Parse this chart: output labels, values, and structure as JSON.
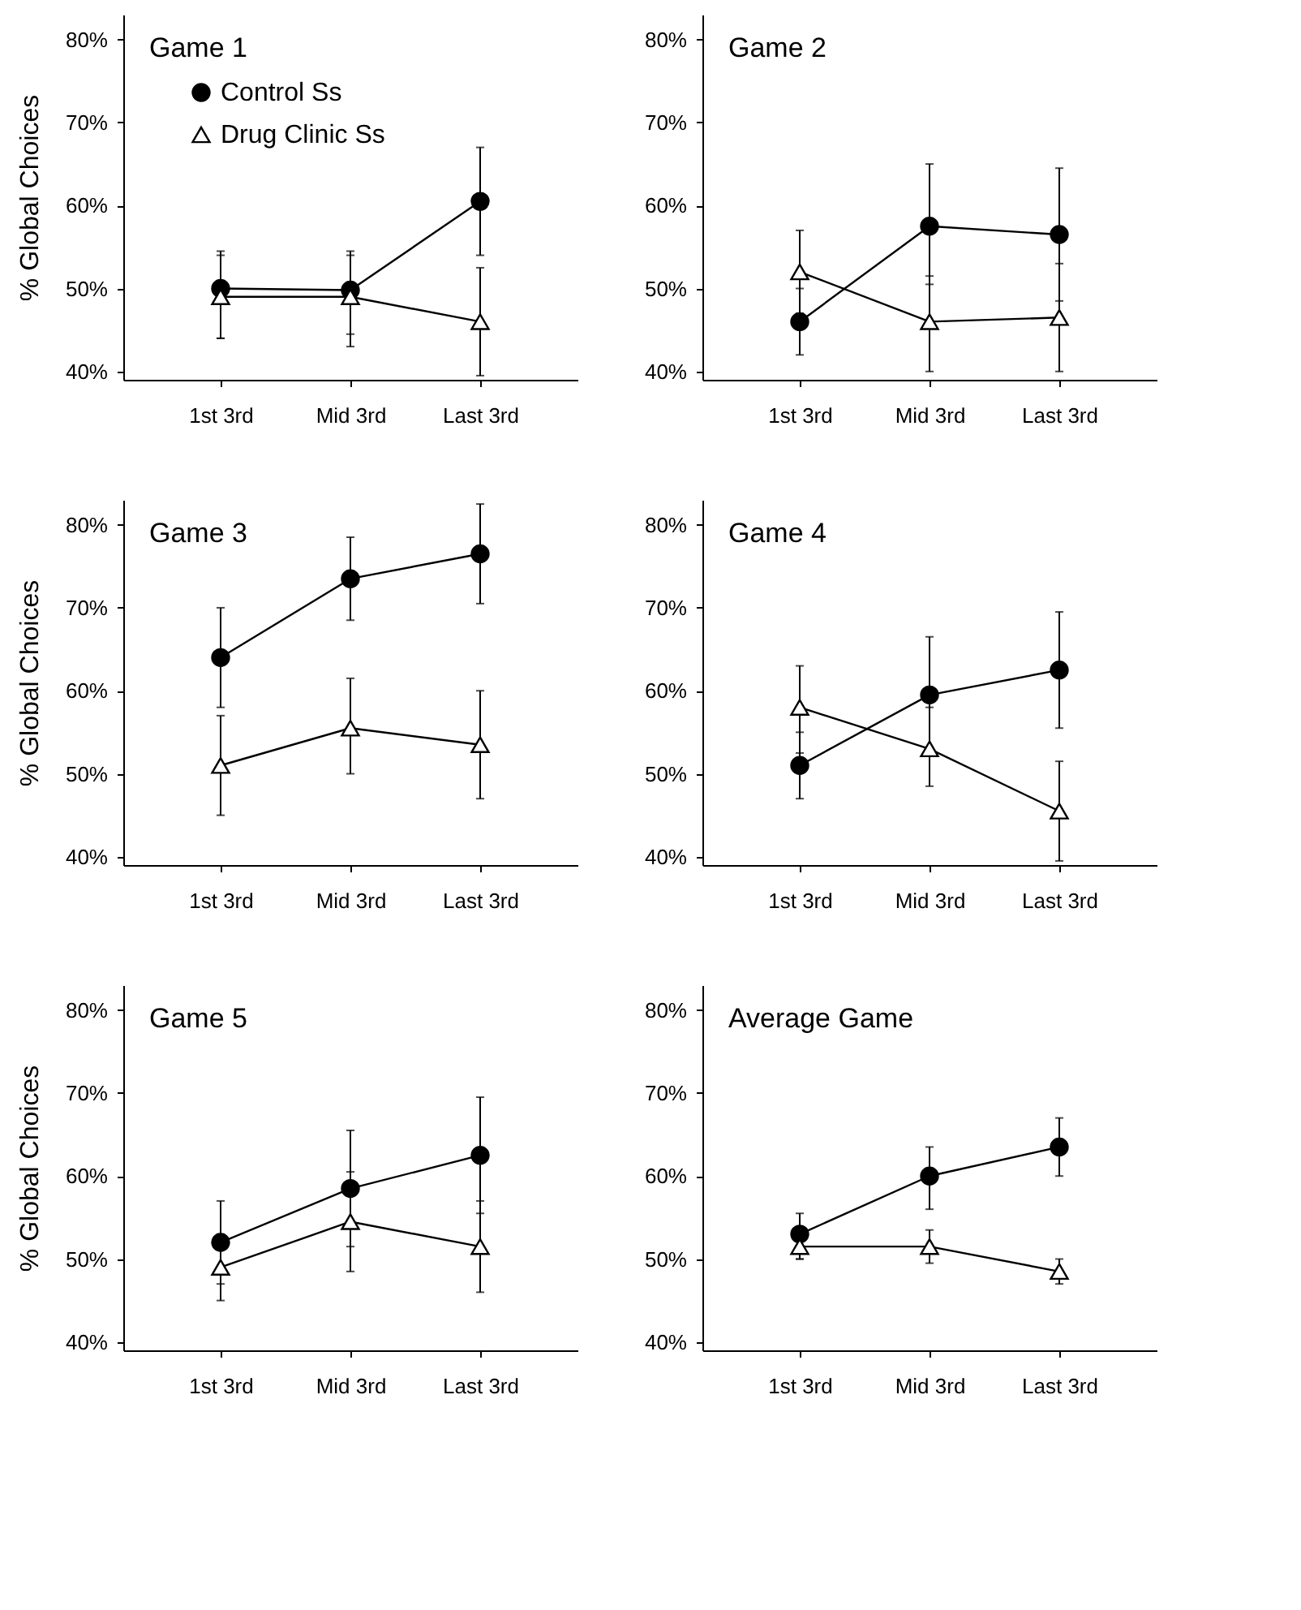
{
  "chart_data": [
    {
      "type": "line",
      "title": "Game 1",
      "ylabel": "% Global Choices",
      "categories": [
        "1st  3rd",
        "Mid 3rd",
        "Last 3rd"
      ],
      "ylim": [
        39,
        83
      ],
      "yticks": [
        {
          "value": 40,
          "label": "40%"
        },
        {
          "value": 50,
          "label": "50%"
        },
        {
          "value": 60,
          "label": "60%"
        },
        {
          "value": 70,
          "label": "70%"
        },
        {
          "value": 80,
          "label": "80%"
        }
      ],
      "legend": "top left",
      "grid": false,
      "series": [
        {
          "name": "Control Ss",
          "color": "#000000",
          "marker": "circle",
          "values": [
            50,
            49.8,
            60.5
          ],
          "errors": [
            [
              44,
              54.5
            ],
            [
              44.5,
              54.5
            ],
            [
              54,
              67
            ]
          ]
        },
        {
          "name": "Drug Clinic Ss",
          "color": "#000000",
          "marker": "triangle",
          "values": [
            49,
            49,
            46
          ],
          "errors": [
            [
              44,
              54
            ],
            [
              43,
              54
            ],
            [
              39.5,
              52.5
            ]
          ]
        }
      ]
    },
    {
      "type": "line",
      "title": "Game 2",
      "categories": [
        "1st  3rd",
        "Mid 3rd",
        "Last 3rd"
      ],
      "ylim": [
        39,
        83
      ],
      "yticks": [
        {
          "value": 40,
          "label": "40%"
        },
        {
          "value": 50,
          "label": "50%"
        },
        {
          "value": 60,
          "label": "60%"
        },
        {
          "value": 70,
          "label": "70%"
        },
        {
          "value": 80,
          "label": "80%"
        }
      ],
      "grid": false,
      "series": [
        {
          "color": "#000000",
          "marker": "circle",
          "values": [
            46,
            57.5,
            56.5
          ],
          "errors": [
            [
              42,
              50
            ],
            [
              50.5,
              65
            ],
            [
              48.5,
              64.5
            ]
          ]
        },
        {
          "color": "#000000",
          "marker": "triangle",
          "values": [
            52,
            46,
            46.5
          ],
          "errors": [
            [
              47,
              57
            ],
            [
              40,
              51.5
            ],
            [
              40,
              53
            ]
          ]
        }
      ]
    },
    {
      "type": "line",
      "title": "Game 3",
      "ylabel": "% Global Choices",
      "categories": [
        "1st  3rd",
        "Mid 3rd",
        "Last 3rd"
      ],
      "ylim": [
        39,
        83
      ],
      "yticks": [
        {
          "value": 40,
          "label": "40%"
        },
        {
          "value": 50,
          "label": "50%"
        },
        {
          "value": 60,
          "label": "60%"
        },
        {
          "value": 70,
          "label": "70%"
        },
        {
          "value": 80,
          "label": "80%"
        }
      ],
      "grid": false,
      "series": [
        {
          "color": "#000000",
          "marker": "circle",
          "values": [
            64,
            73.5,
            76.5
          ],
          "errors": [
            [
              58,
              70
            ],
            [
              68.5,
              78.5
            ],
            [
              70.5,
              82.5
            ]
          ]
        },
        {
          "color": "#000000",
          "marker": "triangle",
          "values": [
            51,
            55.5,
            53.5
          ],
          "errors": [
            [
              45,
              57
            ],
            [
              50,
              61.5
            ],
            [
              47,
              60
            ]
          ]
        }
      ]
    },
    {
      "type": "line",
      "title": "Game 4",
      "categories": [
        "1st  3rd",
        "Mid 3rd",
        "Last 3rd"
      ],
      "ylim": [
        39,
        83
      ],
      "yticks": [
        {
          "value": 40,
          "label": "40%"
        },
        {
          "value": 50,
          "label": "50%"
        },
        {
          "value": 60,
          "label": "60%"
        },
        {
          "value": 70,
          "label": "70%"
        },
        {
          "value": 80,
          "label": "80%"
        }
      ],
      "grid": false,
      "series": [
        {
          "color": "#000000",
          "marker": "circle",
          "values": [
            51,
            59.5,
            62.5
          ],
          "errors": [
            [
              47,
              55
            ],
            [
              52.5,
              66.5
            ],
            [
              55.5,
              69.5
            ]
          ]
        },
        {
          "color": "#000000",
          "marker": "triangle",
          "values": [
            58,
            53,
            45.5
          ],
          "errors": [
            [
              52.5,
              63
            ],
            [
              48.5,
              58
            ],
            [
              39.5,
              51.5
            ]
          ]
        }
      ]
    },
    {
      "type": "line",
      "title": "Game 5",
      "ylabel": "% Global Choices",
      "categories": [
        "1st  3rd",
        "Mid 3rd",
        "Last 3rd"
      ],
      "ylim": [
        39,
        83
      ],
      "yticks": [
        {
          "value": 40,
          "label": "40%"
        },
        {
          "value": 50,
          "label": "50%"
        },
        {
          "value": 60,
          "label": "60%"
        },
        {
          "value": 70,
          "label": "70%"
        },
        {
          "value": 80,
          "label": "80%"
        }
      ],
      "grid": false,
      "series": [
        {
          "color": "#000000",
          "marker": "circle",
          "values": [
            52,
            58.5,
            62.5
          ],
          "errors": [
            [
              47,
              57
            ],
            [
              51.5,
              65.5
            ],
            [
              55.5,
              69.5
            ]
          ]
        },
        {
          "color": "#000000",
          "marker": "triangle",
          "values": [
            49,
            54.5,
            51.5
          ],
          "errors": [
            [
              45,
              53
            ],
            [
              48.5,
              60.5
            ],
            [
              46,
              57
            ]
          ]
        }
      ]
    },
    {
      "type": "line",
      "title": "Average Game",
      "categories": [
        "1st  3rd",
        "Mid 3rd",
        "Last 3rd"
      ],
      "ylim": [
        39,
        83
      ],
      "yticks": [
        {
          "value": 40,
          "label": "40%"
        },
        {
          "value": 50,
          "label": "50%"
        },
        {
          "value": 60,
          "label": "60%"
        },
        {
          "value": 70,
          "label": "70%"
        },
        {
          "value": 80,
          "label": "80%"
        }
      ],
      "grid": false,
      "series": [
        {
          "color": "#000000",
          "marker": "circle",
          "values": [
            53,
            60,
            63.5
          ],
          "errors": [
            [
              50,
              55.5
            ],
            [
              56,
              63.5
            ],
            [
              60,
              67
            ]
          ]
        },
        {
          "color": "#000000",
          "marker": "triangle",
          "values": [
            51.5,
            51.5,
            48.5
          ],
          "errors": [
            [
              50,
              51.5
            ],
            [
              49.5,
              53.5
            ],
            [
              47,
              50
            ]
          ]
        }
      ]
    }
  ]
}
